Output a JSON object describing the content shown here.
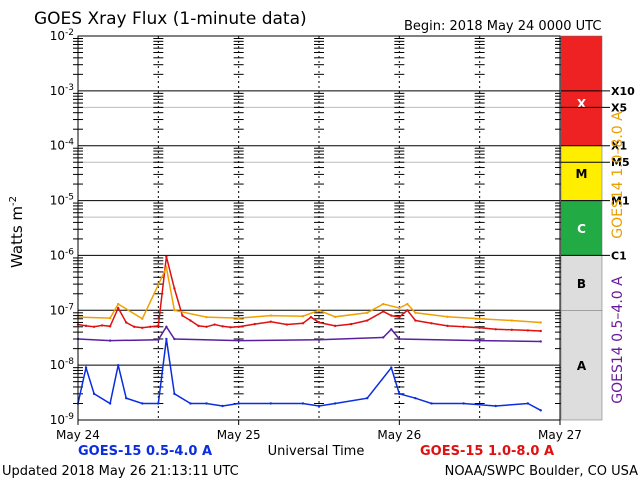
{
  "chart_data": {
    "type": "line",
    "title": "GOES Xray Flux (1-minute data)",
    "begin_label": "Begin:  2018 May 24 0000 UTC",
    "xlabel": "Universal Time",
    "ylabel": "Watts m",
    "ylabel_sup": "-2",
    "y_scale": "log",
    "ylim": [
      1e-09,
      0.01
    ],
    "y_ticks": [
      {
        "base": "10",
        "exp": "-2",
        "value": 0.01
      },
      {
        "base": "10",
        "exp": "-3",
        "value": 0.001
      },
      {
        "base": "10",
        "exp": "-4",
        "value": 0.0001
      },
      {
        "base": "10",
        "exp": "-5",
        "value": 1e-05
      },
      {
        "base": "10",
        "exp": "-6",
        "value": 1e-06
      },
      {
        "base": "10",
        "exp": "-7",
        "value": 1e-07
      },
      {
        "base": "10",
        "exp": "-8",
        "value": 1e-08
      },
      {
        "base": "10",
        "exp": "-9",
        "value": 1e-09
      }
    ],
    "x_ticks": [
      {
        "label": "May 24",
        "day": 0
      },
      {
        "label": "May 25",
        "day": 1
      },
      {
        "label": "May 26",
        "day": 2
      },
      {
        "label": "May 27",
        "day": 3
      }
    ],
    "xlim_days": [
      0,
      3
    ],
    "data_end_day": 2.88,
    "flare_levels": [
      {
        "label": "X10",
        "value": 0.001
      },
      {
        "label": "X5",
        "value": 0.0005
      },
      {
        "label": "X1",
        "value": 0.0001
      },
      {
        "label": "M5",
        "value": 5e-05
      },
      {
        "label": "M1",
        "value": 1e-05
      },
      {
        "label": "C1",
        "value": 1e-06
      }
    ],
    "classes": [
      {
        "label": "X",
        "from": 0.0001,
        "to": 0.01,
        "color": "#ee2222"
      },
      {
        "label": "M",
        "from": 1e-05,
        "to": 0.0001,
        "color": "#ffee00"
      },
      {
        "label": "C",
        "from": 1e-06,
        "to": 1e-05,
        "color": "#22aa44"
      },
      {
        "label": "B",
        "from": 1e-07,
        "to": 1e-06,
        "color": "#dddddd"
      },
      {
        "label": "A",
        "from": 1e-09,
        "to": 1e-07,
        "color": "#dddddd"
      }
    ],
    "right_labels": [
      {
        "text": "GOES14  1.0–8.0 A",
        "color": "#e8a000"
      },
      {
        "text": "GOES14  0.5–4.0 A",
        "color": "#6a1b9a"
      }
    ],
    "series": [
      {
        "name": "GOES-15 1.0-8.0 A",
        "color": "#e01010",
        "days": [
          0,
          0.05,
          0.1,
          0.15,
          0.2,
          0.25,
          0.3,
          0.35,
          0.4,
          0.45,
          0.5,
          0.55,
          0.6,
          0.65,
          0.7,
          0.75,
          0.8,
          0.85,
          0.9,
          0.95,
          1.0,
          1.1,
          1.2,
          1.3,
          1.4,
          1.45,
          1.5,
          1.6,
          1.7,
          1.8,
          1.9,
          1.95,
          2.0,
          2.05,
          2.1,
          2.2,
          2.3,
          2.4,
          2.5,
          2.6,
          2.7,
          2.8,
          2.88
        ],
        "values": [
          5.5e-08,
          5.2e-08,
          5e-08,
          5.3e-08,
          5.1e-08,
          1.1e-07,
          6e-08,
          5e-08,
          4.8e-08,
          5e-08,
          5.2e-08,
          9.5e-07,
          2.5e-07,
          8e-08,
          6.5e-08,
          5.2e-08,
          5e-08,
          5.5e-08,
          5.1e-08,
          4.9e-08,
          5e-08,
          5.6e-08,
          6.2e-08,
          5.5e-08,
          5.8e-08,
          7.5e-08,
          6e-08,
          5.2e-08,
          5.6e-08,
          6.5e-08,
          9.5e-08,
          8e-08,
          7.5e-08,
          1e-07,
          6.5e-08,
          5.8e-08,
          5.2e-08,
          5e-08,
          4.8e-08,
          4.5e-08,
          4.4e-08,
          4.3e-08,
          4.2e-08
        ]
      },
      {
        "name": "GOES-15 0.5-4.0 A",
        "color": "#0a2de0",
        "days": [
          0,
          0.05,
          0.1,
          0.2,
          0.25,
          0.3,
          0.4,
          0.5,
          0.55,
          0.6,
          0.7,
          0.8,
          0.9,
          1.0,
          1.2,
          1.4,
          1.5,
          1.6,
          1.8,
          1.95,
          2.0,
          2.1,
          2.2,
          2.4,
          2.6,
          2.8,
          2.88
        ],
        "values": [
          2e-09,
          9e-09,
          3e-09,
          2e-09,
          1e-08,
          2.5e-09,
          2e-09,
          2e-09,
          3e-08,
          3e-09,
          2e-09,
          2e-09,
          1.8e-09,
          2e-09,
          2e-09,
          2e-09,
          1.8e-09,
          2e-09,
          2.5e-09,
          9e-09,
          3e-09,
          2.5e-09,
          2e-09,
          2e-09,
          1.8e-09,
          2e-09,
          1.5e-09
        ]
      },
      {
        "name": "GOES14 1.0-8.0 A",
        "color": "#f0a000",
        "days": [
          0,
          0.2,
          0.25,
          0.4,
          0.55,
          0.6,
          0.8,
          1.0,
          1.2,
          1.4,
          1.5,
          1.6,
          1.8,
          1.9,
          2.0,
          2.05,
          2.1,
          2.3,
          2.5,
          2.7,
          2.88
        ],
        "values": [
          7.5e-08,
          7.2e-08,
          1.3e-07,
          7e-08,
          6e-07,
          1e-07,
          7.5e-08,
          7.2e-08,
          8e-08,
          7.8e-08,
          1e-07,
          7.6e-08,
          9e-08,
          1.3e-07,
          1.1e-07,
          1.3e-07,
          9e-08,
          7.6e-08,
          7e-08,
          6.5e-08,
          6e-08
        ]
      },
      {
        "name": "GOES14 0.5-4.0 A",
        "color": "#5a1fa0",
        "days": [
          0,
          0.2,
          0.5,
          0.55,
          0.6,
          1.0,
          1.5,
          1.9,
          1.95,
          2.0,
          2.5,
          2.88
        ],
        "values": [
          3e-08,
          2.8e-08,
          2.9e-08,
          5e-08,
          3e-08,
          2.8e-08,
          2.9e-08,
          3.2e-08,
          4.5e-08,
          3e-08,
          2.8e-08,
          2.7e-08
        ]
      }
    ],
    "legend_left": {
      "text": "GOES-15 0.5-4.0 A",
      "color": "#0a2de0"
    },
    "legend_right": {
      "text": "GOES-15 1.0-8.0 A",
      "color": "#e01010"
    }
  },
  "footer": {
    "updated": "Updated 2018 May 26 21:13:11 UTC",
    "credit": "NOAA/SWPC Boulder, CO USA"
  }
}
